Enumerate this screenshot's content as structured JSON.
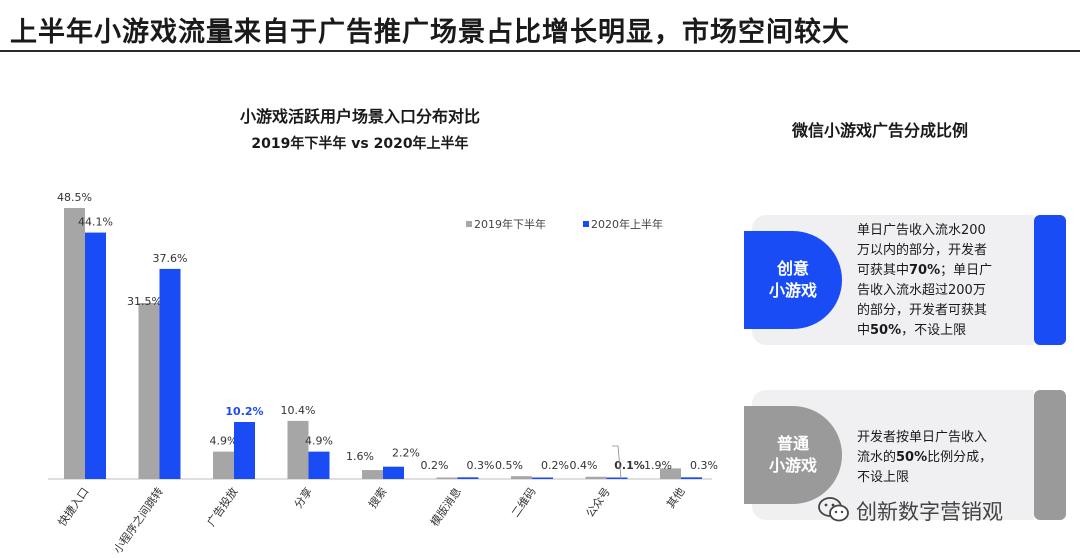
{
  "page_title": "上半年小游戏流量来自于广告推广场景占比增长明显，市场空间较大",
  "left_chart": {
    "title": "小游戏活跃用户场景入口分布对比",
    "subtitle": "2019年下半年 vs 2020年上半年"
  },
  "chart_data": {
    "type": "bar",
    "categories": [
      "快捷入口",
      "小程序之间跳转",
      "广告投放",
      "分享",
      "搜索",
      "模版消息",
      "二维码",
      "公众号",
      "其他"
    ],
    "series": [
      {
        "name": "2019年下半年",
        "color": "#a6a6a6",
        "values": [
          48.5,
          31.5,
          4.9,
          10.4,
          1.6,
          0.2,
          0.5,
          0.4,
          1.9
        ],
        "labels": [
          "48.5%",
          "31.5%",
          "4.9%",
          "10.4%",
          "1.6%",
          "0.2%",
          "0.5%",
          "0.4%",
          "1.9%"
        ]
      },
      {
        "name": "2020年上半年",
        "color": "#1a4cf6",
        "values": [
          44.1,
          37.6,
          10.2,
          4.9,
          2.2,
          0.3,
          0.2,
          0.1,
          0.3
        ],
        "labels": [
          "44.1%",
          "37.6%",
          "10.2%",
          "4.9%",
          "2.2%",
          "0.3%",
          "0.2%",
          "0.1%",
          "0.3%"
        ]
      }
    ],
    "ylim": [
      0,
      50
    ],
    "highlight_label_color": "#1a4cf6",
    "legend_position": "top-right",
    "grid": false
  },
  "right_panel": {
    "title": "微信小游戏广告分成比例",
    "cards": [
      {
        "pill_line1": "创意",
        "pill_line2": "小游戏",
        "lines": [
          "单日广告收入流水200",
          "万以内的部分，开发者",
          "可获其中70%；单日广",
          "告收入流水超过200万",
          "的部分，开发者可获其",
          "中50%，不设上限"
        ],
        "color": "#1a4cf6"
      },
      {
        "pill_line1": "普通",
        "pill_line2": "小游戏",
        "lines": [
          "开发者按单日广告收入",
          "流水的50%比例分成，",
          "不设上限"
        ],
        "color": "#9a9a9a"
      }
    ]
  },
  "watermark": {
    "text": "创新数字营销观",
    "icon": "wechat-icon"
  }
}
